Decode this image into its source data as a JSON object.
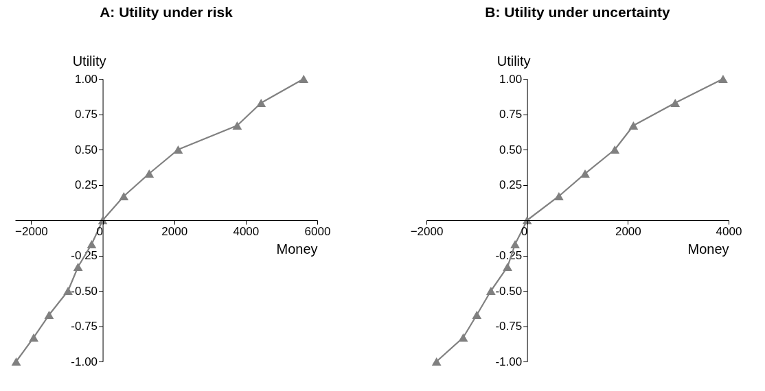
{
  "chart_data": [
    {
      "type": "line",
      "title": "A: Utility under risk",
      "xlabel": "Money",
      "ylabel": "Utility",
      "marker": "triangle",
      "grid": false,
      "x": [
        -2420,
        -1930,
        -1500,
        -970,
        -690,
        -310,
        0,
        590,
        1300,
        2110,
        3760,
        4430,
        5620
      ],
      "series": [
        {
          "color": "#808080",
          "values": [
            -1.0,
            -0.83,
            -0.67,
            -0.5,
            -0.33,
            -0.17,
            0,
            0.17,
            0.33,
            0.5,
            0.67,
            0.83,
            1.0
          ]
        }
      ],
      "xlim": [
        -2450,
        6000
      ],
      "ylim": [
        -1,
        1
      ],
      "xticks": [
        -2000,
        0,
        2000,
        4000,
        6000
      ],
      "yticks": [
        {
          "value": 1,
          "label": "1.00"
        },
        {
          "value": 0.75,
          "label": "0.75"
        },
        {
          "value": 0.5,
          "label": "0.50"
        },
        {
          "value": 0.25,
          "label": "0.25"
        },
        {
          "value": -0.25,
          "label": "-0.25"
        },
        {
          "value": -0.5,
          "label": "-0.50"
        },
        {
          "value": -0.75,
          "label": "-0.75"
        },
        {
          "value": -1,
          "label": "-1.00"
        }
      ]
    },
    {
      "type": "line",
      "title": "B: Utility under uncertainty",
      "xlabel": "Money",
      "ylabel": "Utility",
      "marker": "triangle",
      "grid": false,
      "x": [
        -1800,
        -1270,
        -1000,
        -720,
        -390,
        -240,
        0,
        630,
        1150,
        1740,
        2110,
        2940,
        3890
      ],
      "series": [
        {
          "color": "#808080",
          "values": [
            -1.0,
            -0.83,
            -0.67,
            -0.5,
            -0.33,
            -0.17,
            0,
            0.17,
            0.33,
            0.5,
            0.67,
            0.83,
            1.0
          ]
        }
      ],
      "xlim": [
        -2000,
        4000
      ],
      "ylim": [
        -1,
        1
      ],
      "xticks": [
        -2000,
        0,
        2000,
        4000
      ],
      "yticks": [
        {
          "value": 1,
          "label": "1.00"
        },
        {
          "value": 0.75,
          "label": "0.75"
        },
        {
          "value": 0.5,
          "label": "0.50"
        },
        {
          "value": 0.25,
          "label": "0.25"
        },
        {
          "value": -0.25,
          "label": "-0.25"
        },
        {
          "value": -0.5,
          "label": "-0.50"
        },
        {
          "value": -0.75,
          "label": "-0.75"
        },
        {
          "value": -1,
          "label": "-1.00"
        }
      ]
    }
  ]
}
